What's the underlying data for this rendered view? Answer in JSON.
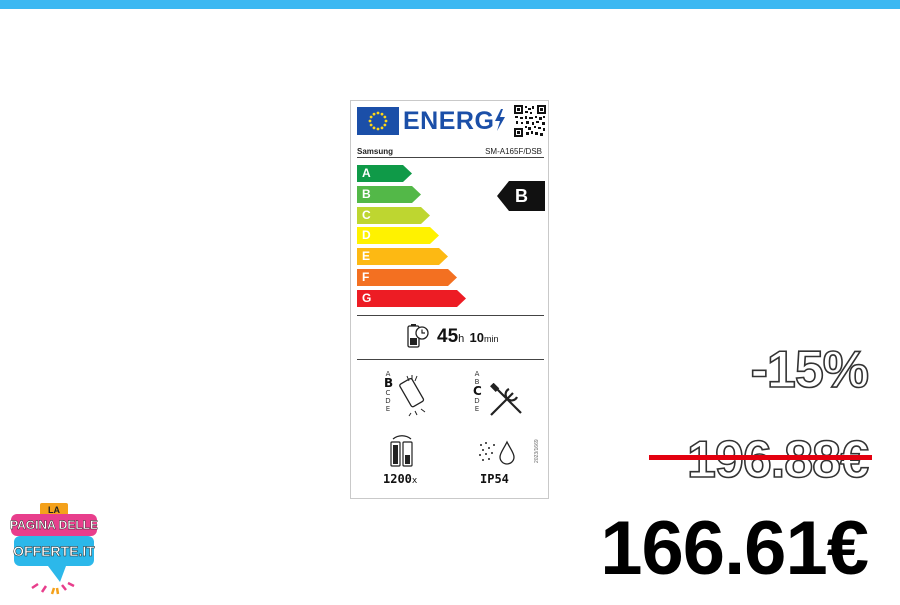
{
  "energy_label": {
    "header_word": "ENERG",
    "brand": "Samsung",
    "model": "SM-A165F/DSB",
    "classes": [
      {
        "letter": "A",
        "color": "#0f9a48"
      },
      {
        "letter": "B",
        "color": "#53b848"
      },
      {
        "letter": "C",
        "color": "#bed630"
      },
      {
        "letter": "D",
        "color": "#fff200"
      },
      {
        "letter": "E",
        "color": "#fdb913"
      },
      {
        "letter": "F",
        "color": "#f37021"
      },
      {
        "letter": "G",
        "color": "#ed1c24"
      }
    ],
    "rating": "B",
    "battery_endurance": {
      "hours": "45",
      "hours_unit": "h",
      "minutes": "10",
      "minutes_unit": "min"
    },
    "drop_scale": {
      "letters": [
        "A",
        "B",
        "C",
        "D",
        "E"
      ],
      "selected": "B"
    },
    "repair_scale": {
      "letters": [
        "A",
        "B",
        "C",
        "D",
        "E"
      ],
      "selected": "C"
    },
    "battery_cycles": {
      "value": "1200",
      "unit": "x"
    },
    "ingress_protection": "IP54",
    "regulation_code": "2023/1669",
    "icons": [
      "eu-flag-icon",
      "lightning-icon",
      "qr-code-icon",
      "battery-clock-icon",
      "drop-phone-icon",
      "repair-tools-icon",
      "battery-cycle-icon",
      "dust-water-icon"
    ]
  },
  "pricing": {
    "discount": "-15%",
    "old_price": "196.88€",
    "new_price": "166.61€",
    "strike_color": "#e3000f"
  },
  "logo": {
    "line1": "LA",
    "line2": "PAGINA DELLE",
    "line3": "OFFERTE.IT"
  },
  "colors": {
    "top_bar": "#3bb8f2",
    "eu_blue": "#1b4fa8"
  }
}
